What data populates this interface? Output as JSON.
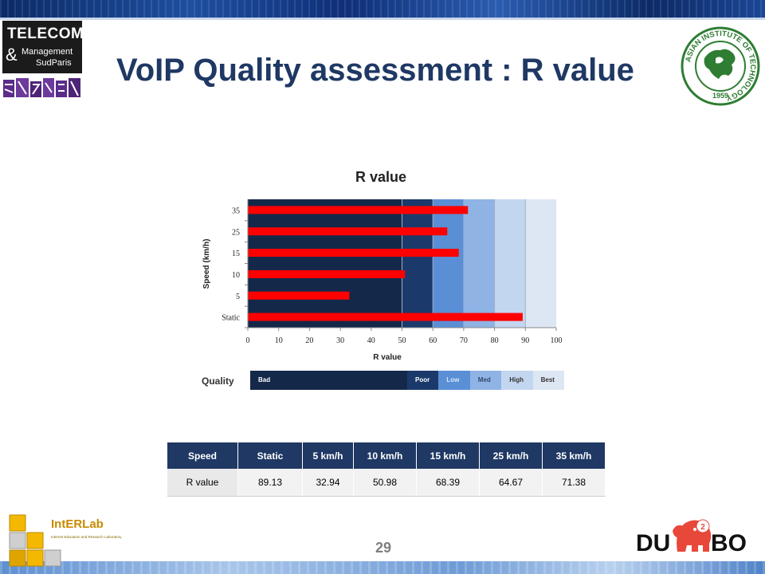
{
  "slide": {
    "title": "VoIP Quality assessment : R value",
    "page_number": "29"
  },
  "logos": {
    "telecom": {
      "line1": "TELECOM",
      "line2": "&",
      "line3": "Management",
      "line4": "SudParis"
    },
    "ait": {
      "text": "ASIAN INSTITUTE OF TECHNOLOGY",
      "year": "1959"
    },
    "intelab": {
      "name": "IntERLab",
      "tagline": "Internet Education and Research Laboratory"
    },
    "dumbo": {
      "name": "DUMBO",
      "badge": "2"
    }
  },
  "chart_data": {
    "type": "bar",
    "orientation": "horizontal",
    "title": "R value",
    "xlabel": "R value",
    "ylabel": "Speed (km/h)",
    "categories": [
      "Static",
      "5",
      "10",
      "15",
      "25",
      "35"
    ],
    "values": [
      89.13,
      32.94,
      50.98,
      68.39,
      64.67,
      71.38
    ],
    "xlim": [
      0,
      100
    ],
    "xticks": [
      "0",
      "10",
      "20",
      "30",
      "40",
      "50",
      "60",
      "70",
      "80",
      "90",
      "100"
    ],
    "bar_color": "#ff0000",
    "background_bands": [
      {
        "from": 0,
        "to": 50,
        "color": "#14284a"
      },
      {
        "from": 50,
        "to": 60,
        "color": "#1b3a6b"
      },
      {
        "from": 60,
        "to": 70,
        "color": "#5a8fd6"
      },
      {
        "from": 70,
        "to": 80,
        "color": "#8fb3e5"
      },
      {
        "from": 80,
        "to": 90,
        "color": "#c3d6f0"
      },
      {
        "from": 90,
        "to": 100,
        "color": "#dde6f3"
      }
    ]
  },
  "quality_scale": {
    "label": "Quality",
    "levels": [
      {
        "name": "Bad",
        "from": 0,
        "to": 50,
        "color": "#14284a",
        "text_color": "#ffffff"
      },
      {
        "name": "Poor",
        "from": 50,
        "to": 60,
        "color": "#1b3a6b",
        "text_color": "#ffffff"
      },
      {
        "name": "Low",
        "from": 60,
        "to": 70,
        "color": "#5a8fd6",
        "text_color": "#d8e6fb"
      },
      {
        "name": "Med",
        "from": 70,
        "to": 80,
        "color": "#8fb3e5",
        "text_color": "#334a6e"
      },
      {
        "name": "High",
        "from": 80,
        "to": 90,
        "color": "#c3d6f0",
        "text_color": "#333333"
      },
      {
        "name": "Best",
        "from": 90,
        "to": 100,
        "color": "#dde6f3",
        "text_color": "#333333"
      }
    ]
  },
  "table": {
    "headers": [
      "Speed",
      "Static",
      "5 km/h",
      "10 km/h",
      "15 km/h",
      "25 km/h",
      "35 km/h"
    ],
    "rows": [
      [
        "R value",
        "89.13",
        "32.94",
        "50.98",
        "68.39",
        "64.67",
        "71.38"
      ]
    ]
  },
  "colors": {
    "title": "#1f3864",
    "table_header": "#1f3864"
  }
}
